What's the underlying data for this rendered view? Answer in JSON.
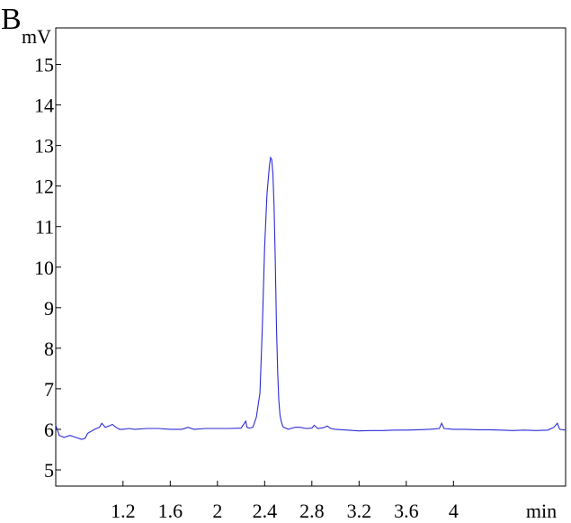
{
  "panel_label": "B",
  "chart_data": {
    "type": "line",
    "title": "",
    "xlabel": "min",
    "ylabel": "mV",
    "xlim": [
      0.63,
      4.95
    ],
    "ylim": [
      4.6,
      15.9
    ],
    "x_ticks": [
      1.2,
      1.6,
      2,
      2.4,
      2.8,
      3.2,
      3.6,
      4
    ],
    "x_tick_labels": [
      "1.2",
      "1.6",
      "2",
      "2.4",
      "2.8",
      "3.2",
      "3.6",
      "4"
    ],
    "y_ticks": [
      5,
      6,
      7,
      8,
      9,
      10,
      11,
      12,
      13,
      14,
      15
    ],
    "y_tick_labels": [
      "5",
      "6",
      "7",
      "8",
      "9",
      "10",
      "11",
      "12",
      "13",
      "14",
      "15"
    ],
    "grid": false,
    "legend": "none",
    "line_color": "#2b2bd6",
    "series": [
      {
        "x": [
          0.63,
          0.66,
          0.7,
          0.75,
          0.8,
          0.85,
          0.88,
          0.9,
          0.93,
          0.96,
          1.0,
          1.02,
          1.05,
          1.08,
          1.11,
          1.14,
          1.17,
          1.2,
          1.25,
          1.3,
          1.4,
          1.5,
          1.6,
          1.7,
          1.75,
          1.78,
          1.8,
          1.9,
          2.0,
          2.1,
          2.2,
          2.24,
          2.25,
          2.27,
          2.3,
          2.33,
          2.36,
          2.38,
          2.4,
          2.42,
          2.44,
          2.45,
          2.46,
          2.47,
          2.48,
          2.49,
          2.5,
          2.51,
          2.52,
          2.53,
          2.54,
          2.55,
          2.56,
          2.58,
          2.6,
          2.63,
          2.66,
          2.7,
          2.75,
          2.8,
          2.82,
          2.85,
          2.9,
          2.93,
          2.96,
          3.0,
          3.1,
          3.2,
          3.3,
          3.4,
          3.5,
          3.6,
          3.7,
          3.8,
          3.88,
          3.9,
          3.92,
          4.0,
          4.1,
          4.2,
          4.3,
          4.4,
          4.5,
          4.6,
          4.7,
          4.8,
          4.85,
          4.88,
          4.9,
          4.95
        ],
        "y": [
          6.1,
          5.85,
          5.8,
          5.85,
          5.8,
          5.75,
          5.78,
          5.9,
          5.95,
          6.0,
          6.05,
          6.15,
          6.05,
          6.08,
          6.12,
          6.05,
          6.0,
          6.0,
          6.02,
          6.0,
          6.02,
          6.02,
          6.0,
          6.0,
          6.05,
          6.02,
          6.0,
          6.02,
          6.02,
          6.02,
          6.03,
          6.2,
          6.05,
          6.03,
          6.05,
          6.3,
          6.9,
          8.5,
          10.5,
          11.8,
          12.5,
          12.7,
          12.65,
          12.3,
          11.5,
          10.2,
          8.6,
          7.4,
          6.7,
          6.35,
          6.2,
          6.1,
          6.05,
          6.03,
          6.0,
          6.03,
          6.05,
          6.05,
          6.02,
          6.03,
          6.1,
          6.02,
          6.04,
          6.08,
          6.02,
          6.0,
          5.98,
          5.96,
          5.97,
          5.97,
          5.98,
          5.98,
          5.99,
          6.0,
          6.02,
          6.15,
          6.02,
          6.0,
          6.0,
          5.99,
          5.99,
          5.98,
          5.97,
          5.98,
          5.97,
          5.98,
          6.05,
          6.15,
          6.0,
          5.98
        ]
      }
    ]
  }
}
